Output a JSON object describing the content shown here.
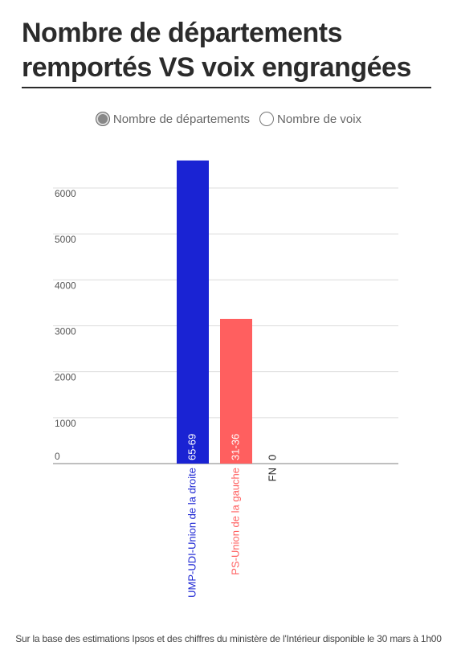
{
  "title": "Nombre de départements remportés VS voix engrangées",
  "toggle": {
    "options": [
      {
        "label": "Nombre de départements",
        "selected": true
      },
      {
        "label": "Nombre de voix",
        "selected": false
      }
    ]
  },
  "chart_data": {
    "type": "bar",
    "categories": [
      "UMP-UDI-Union de la droite",
      "PS-Union de la gauche",
      "FN"
    ],
    "values": [
      6600,
      3150,
      0
    ],
    "data_labels": [
      "65-69",
      "31-36",
      "0"
    ],
    "colors": [
      "#1a23d3",
      "#ff5f5f",
      "#222222"
    ],
    "yticks": [
      0,
      1000,
      2000,
      3000,
      4000,
      5000,
      6000
    ],
    "ylim": [
      0,
      6700
    ],
    "grid": true
  },
  "footnote": "Sur la base des estimations Ipsos et des chiffres du ministère de l'Intérieur disponible le 30 mars à 1h00"
}
